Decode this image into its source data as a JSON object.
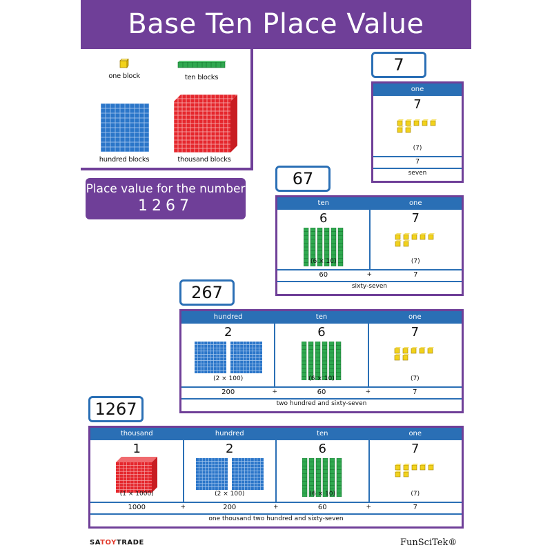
{
  "title": "Base Ten Place Value",
  "legend": {
    "one_block": "one block",
    "ten_blocks": "ten blocks",
    "hundred_blocks": "hundred blocks",
    "thousand_blocks": "thousand blocks"
  },
  "place_value_banner": {
    "line1": "Place value for the number",
    "line2": "1267"
  },
  "examples": [
    {
      "number": "7",
      "headers": [
        "one"
      ],
      "digits": [
        "7"
      ],
      "mults": [
        "(7)"
      ],
      "values": [
        "7"
      ],
      "words": "seven"
    },
    {
      "number": "67",
      "headers": [
        "ten",
        "one"
      ],
      "digits": [
        "6",
        "7"
      ],
      "mults": [
        "(6 × 10)",
        "(7)"
      ],
      "values": [
        "60",
        "7"
      ],
      "words": "sixty-seven"
    },
    {
      "number": "267",
      "headers": [
        "hundred",
        "ten",
        "one"
      ],
      "digits": [
        "2",
        "6",
        "7"
      ],
      "mults": [
        "(2 × 100)",
        "(6 × 10)",
        "(7)"
      ],
      "values": [
        "200",
        "60",
        "7"
      ],
      "words": "two hundred and sixty-seven"
    },
    {
      "number": "1267",
      "headers": [
        "thousand",
        "hundred",
        "ten",
        "one"
      ],
      "digits": [
        "1",
        "2",
        "6",
        "7"
      ],
      "mults": [
        "(1 × 1000)",
        "(2 × 100)",
        "(6 × 10)",
        "(7)"
      ],
      "values": [
        "1000",
        "200",
        "60",
        "7"
      ],
      "words": "one thousand two hundred and sixty-seven"
    }
  ],
  "footer": {
    "left_a": "SA",
    "left_toy": "TOY",
    "left_b": "TRADE",
    "right": "FunSciTek®"
  },
  "colors": {
    "purple": "#6f3f98",
    "blue": "#2a6fb5",
    "one_block": "#f2d21b",
    "ten_block": "#2fa84f",
    "hundred_block": "#2b76c9",
    "thousand_block": "#e5272d"
  },
  "icons": [
    "one-block-icon",
    "ten-block-icon",
    "hundred-block-icon",
    "thousand-block-icon"
  ]
}
